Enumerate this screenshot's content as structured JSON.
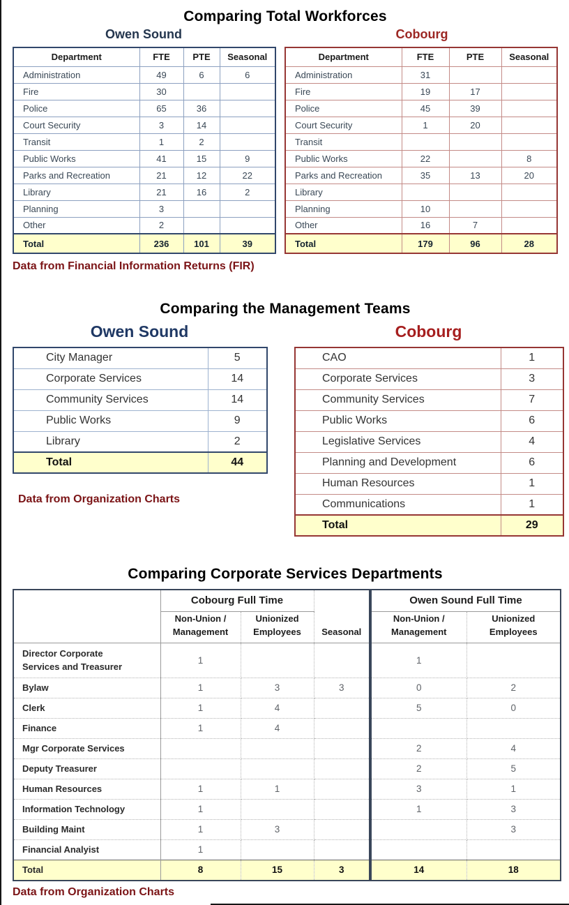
{
  "colors": {
    "owen_dark_title": "#24364E",
    "owen_navy": "#1F3864",
    "owen_border": "#31476B",
    "owen_grid": "#8CA0C0",
    "cobourg_border": "#963634",
    "cobourg_grid": "#C38A86",
    "cobourg_title_s1": "#9C2723",
    "cobourg_title_s2": "#A61F1F",
    "note_maroon": "#7B1416",
    "total_row_bg": "#FFFFCC",
    "corp_table_border": "#39465A",
    "corp_grid": "#B3B3B3"
  },
  "section1": {
    "title": "Comparing Total Workforces",
    "note": "Data from Financial Information Returns (FIR)",
    "owen": {
      "subtitle": "Owen Sound",
      "headers": [
        "Department",
        "FTE",
        "PTE",
        "Seasonal"
      ],
      "rows": [
        [
          "Administration",
          "49",
          "6",
          "6"
        ],
        [
          "Fire",
          "30",
          "",
          ""
        ],
        [
          "Police",
          "65",
          "36",
          ""
        ],
        [
          "Court Security",
          "3",
          "14",
          ""
        ],
        [
          "Transit",
          "1",
          "2",
          ""
        ],
        [
          "Public Works",
          "41",
          "15",
          "9"
        ],
        [
          "Parks and Recreation",
          "21",
          "12",
          "22"
        ],
        [
          "Library",
          "21",
          "16",
          "2"
        ],
        [
          "Planning",
          "3",
          "",
          ""
        ],
        [
          "Other",
          "2",
          "",
          ""
        ]
      ],
      "total": [
        "Total",
        "236",
        "101",
        "39"
      ]
    },
    "cobourg": {
      "subtitle": "Cobourg",
      "headers": [
        "Department",
        "FTE",
        "PTE",
        "Seasonal"
      ],
      "rows": [
        [
          "Administration",
          "31",
          "",
          ""
        ],
        [
          "Fire",
          "19",
          "17",
          ""
        ],
        [
          "Police",
          "45",
          "39",
          ""
        ],
        [
          "Court Security",
          "1",
          "20",
          ""
        ],
        [
          "Transit",
          "",
          "",
          ""
        ],
        [
          "Public Works",
          "22",
          "",
          "8"
        ],
        [
          "Parks and Recreation",
          "35",
          "13",
          "20"
        ],
        [
          "Library",
          "",
          "",
          ""
        ],
        [
          "Planning",
          "10",
          "",
          ""
        ],
        [
          "Other",
          "16",
          "7",
          ""
        ]
      ],
      "total": [
        "Total",
        "179",
        "96",
        "28"
      ]
    }
  },
  "section2": {
    "title": "Comparing the Management Teams",
    "note": "Data from Organization Charts",
    "owen": {
      "subtitle": "Owen Sound",
      "rows": [
        [
          "City Manager",
          "5"
        ],
        [
          "Corporate Services",
          "14"
        ],
        [
          "Community Services",
          "14"
        ],
        [
          "Public Works",
          "9"
        ],
        [
          "Library",
          "2"
        ]
      ],
      "total": [
        "Total",
        "44"
      ]
    },
    "cobourg": {
      "subtitle": "Cobourg",
      "rows": [
        [
          "CAO",
          "1"
        ],
        [
          "Corporate Services",
          "3"
        ],
        [
          "Community Services",
          "7"
        ],
        [
          "Public Works",
          "6"
        ],
        [
          "Legislative Services",
          "4"
        ],
        [
          "Planning and Development",
          "6"
        ],
        [
          "Human Resources",
          "1"
        ],
        [
          "Communications",
          "1"
        ]
      ],
      "total": [
        "Total",
        "29"
      ]
    }
  },
  "section3": {
    "title": "Comparing Corporate Services Departments",
    "note": "Data from Organization Charts",
    "cobourg": {
      "group_header": "Cobourg Full Time",
      "col_headers": [
        "Non-Union /\nManagement",
        "Unionized\nEmployees",
        "Seasonal"
      ],
      "rows": [
        [
          "Director Corporate Services and Treasurer",
          "1",
          "",
          ""
        ],
        [
          "Bylaw",
          "1",
          "3",
          "3"
        ],
        [
          "Clerk",
          "1",
          "4",
          ""
        ],
        [
          "Finance",
          "1",
          "4",
          ""
        ],
        [
          "Mgr Corporate Services",
          "",
          "",
          ""
        ],
        [
          "Deputy Treasurer",
          "",
          "",
          ""
        ],
        [
          "Human Resources",
          "1",
          "1",
          ""
        ],
        [
          "Information Technology",
          "1",
          "",
          ""
        ],
        [
          "Building Maint",
          "1",
          "3",
          ""
        ],
        [
          "Financial Analyist",
          "1",
          "",
          ""
        ]
      ],
      "total": [
        "Total",
        "8",
        "15",
        "3"
      ]
    },
    "owen": {
      "group_header": "Owen Sound Full Time",
      "col_headers": [
        "Non-Union /\nManagement",
        "Unionized\nEmployees"
      ],
      "rows": [
        [
          "1",
          ""
        ],
        [
          "0",
          "2"
        ],
        [
          "5",
          "0"
        ],
        [
          "",
          ""
        ],
        [
          "2",
          "4"
        ],
        [
          "2",
          "5"
        ],
        [
          "3",
          "1"
        ],
        [
          "1",
          "3"
        ],
        [
          "",
          "3"
        ],
        [
          "",
          ""
        ]
      ],
      "total": [
        "14",
        "18"
      ]
    }
  }
}
